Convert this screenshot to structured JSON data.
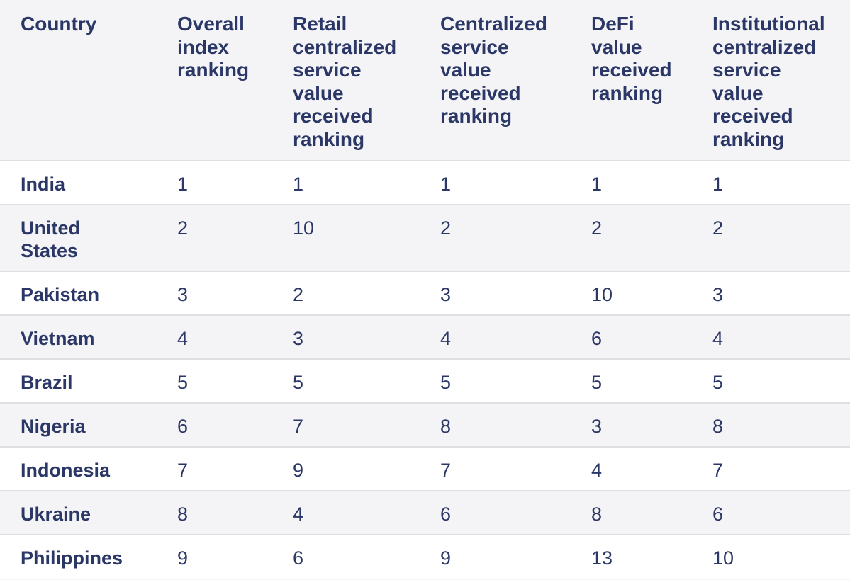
{
  "chart_data": {
    "type": "table",
    "columns": [
      "Country",
      "Overall index ranking",
      "Retail centralized service value received ranking",
      "Centralized service value received ranking",
      "DeFi value received ranking",
      "Institutional centralized service value received ranking"
    ],
    "header_lines": [
      [
        "Country"
      ],
      [
        "Overall",
        "index",
        "ranking"
      ],
      [
        "Retail",
        "centralized",
        "service",
        "value",
        "received",
        "ranking"
      ],
      [
        "Centralized",
        "service",
        "value",
        "received",
        "ranking"
      ],
      [
        "DeFi",
        "value",
        "received",
        "ranking"
      ],
      [
        "Institutional",
        "centralized",
        "service",
        "value",
        "received",
        "ranking"
      ]
    ],
    "rows": [
      {
        "country": [
          "India"
        ],
        "values": [
          "1",
          "1",
          "1",
          "1",
          "1"
        ]
      },
      {
        "country": [
          "United",
          "States"
        ],
        "values": [
          "2",
          "10",
          "2",
          "2",
          "2"
        ]
      },
      {
        "country": [
          "Pakistan"
        ],
        "values": [
          "3",
          "2",
          "3",
          "10",
          "3"
        ]
      },
      {
        "country": [
          "Vietnam"
        ],
        "values": [
          "4",
          "3",
          "4",
          "6",
          "4"
        ]
      },
      {
        "country": [
          "Brazil"
        ],
        "values": [
          "5",
          "5",
          "5",
          "5",
          "5"
        ]
      },
      {
        "country": [
          "Nigeria"
        ],
        "values": [
          "6",
          "7",
          "8",
          "3",
          "8"
        ]
      },
      {
        "country": [
          "Indonesia"
        ],
        "values": [
          "7",
          "9",
          "7",
          "4",
          "7"
        ]
      },
      {
        "country": [
          "Ukraine"
        ],
        "values": [
          "8",
          "4",
          "6",
          "8",
          "6"
        ]
      },
      {
        "country": [
          "Philippines"
        ],
        "values": [
          "9",
          "6",
          "9",
          "13",
          "10"
        ]
      }
    ]
  },
  "colors": {
    "text": "#2b3766",
    "row_shaded": "#f4f4f6",
    "row_plain": "#ffffff",
    "divider": "#dedee3"
  }
}
